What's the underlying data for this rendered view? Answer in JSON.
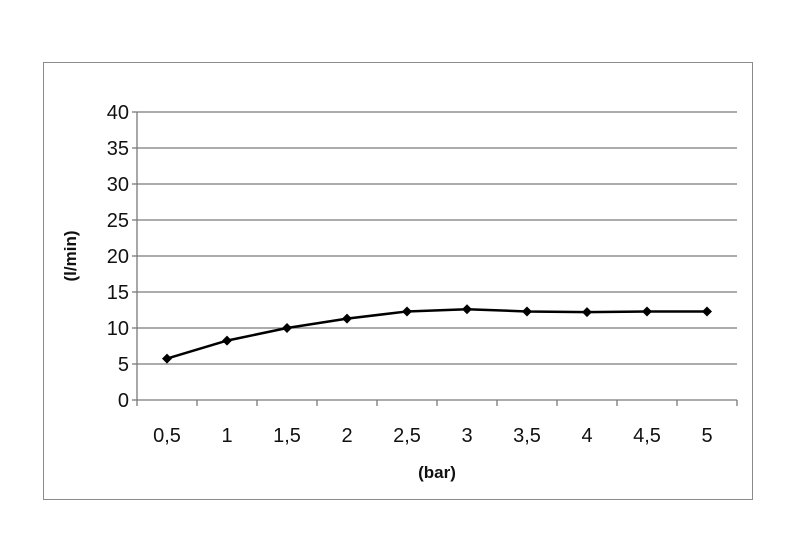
{
  "chart_data": {
    "type": "line",
    "title": "",
    "xlabel": "(bar)",
    "ylabel": "(l/min)",
    "categories": [
      "0,5",
      "1",
      "1,5",
      "2",
      "2,5",
      "3",
      "3,5",
      "4",
      "4,5",
      "5"
    ],
    "series": [
      {
        "values": [
          5.75,
          8.25,
          10.0,
          11.3,
          12.3,
          12.6,
          12.3,
          12.2,
          12.3,
          12.3
        ],
        "color": "#000000",
        "marker": "diamond"
      }
    ],
    "ylim": [
      0,
      40
    ],
    "yticks": [
      "0",
      "5",
      "10",
      "15",
      "20",
      "25",
      "30",
      "35",
      "40"
    ],
    "grid": true,
    "legend": "none"
  }
}
